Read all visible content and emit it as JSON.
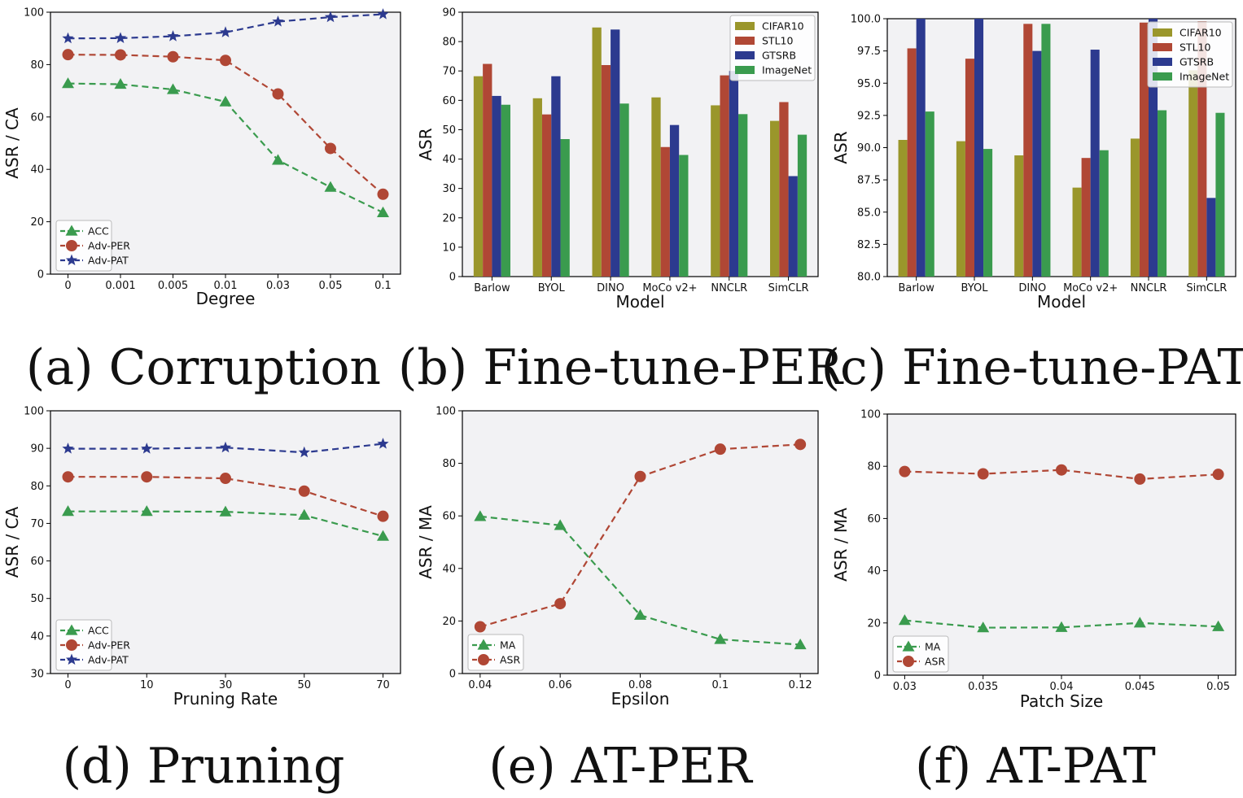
{
  "colors": {
    "green": "#3a9b4e",
    "red": "#b04735",
    "blue": "#2c3a8f",
    "olive": "#9a962b",
    "imagenet_green": "#3a9b4e"
  },
  "chart_data": [
    {
      "id": "a",
      "type": "line",
      "caption": "(a) Corruption",
      "xlabel": "Degree",
      "ylabel": "ASR / CA",
      "categories": [
        "0",
        "0.001",
        "0.005",
        "0.01",
        "0.03",
        "0.05",
        "0.1"
      ],
      "ylim": [
        0,
        100
      ],
      "yticks": [
        "0",
        "20",
        "40",
        "60",
        "80",
        "100"
      ],
      "legend_position": "lower-left",
      "series": [
        {
          "name": "ACC",
          "marker": "triangle",
          "color": "#3a9b4e",
          "values": [
            72.8,
            72.5,
            70.5,
            65.8,
            43.5,
            33.2,
            23.5
          ]
        },
        {
          "name": "Adv-PER",
          "marker": "circle",
          "color": "#b04735",
          "values": [
            83.8,
            83.7,
            83.0,
            81.6,
            68.8,
            48.0,
            30.5
          ]
        },
        {
          "name": "Adv-PAT",
          "marker": "star",
          "color": "#2c3a8f",
          "values": [
            90.0,
            90.1,
            90.8,
            92.3,
            96.4,
            98.1,
            99.2
          ]
        }
      ]
    },
    {
      "id": "b",
      "type": "bar",
      "caption": "(b) Fine-tune-PER",
      "xlabel": "Model",
      "ylabel": "ASR",
      "categories": [
        "Barlow",
        "BYOL",
        "DINO",
        "MoCo v2+",
        "NNCLR",
        "SimCLR"
      ],
      "ylim": [
        0,
        90
      ],
      "yticks": [
        "0",
        "10",
        "20",
        "30",
        "40",
        "50",
        "60",
        "70",
        "80",
        "90"
      ],
      "legend_position": "upper-right",
      "series": [
        {
          "name": "CIFAR10",
          "color": "#9a962b",
          "values": [
            68.2,
            60.7,
            84.8,
            61.0,
            58.3,
            53.0
          ]
        },
        {
          "name": "STL10",
          "color": "#b04735",
          "values": [
            72.4,
            55.2,
            72.0,
            44.1,
            68.5,
            59.4
          ]
        },
        {
          "name": "GTSRB",
          "color": "#2c3a8f",
          "values": [
            61.5,
            68.2,
            84.1,
            51.6,
            70.0,
            34.2
          ]
        },
        {
          "name": "ImageNet",
          "color": "#3a9b4e",
          "values": [
            58.5,
            46.8,
            58.9,
            41.4,
            55.3,
            48.3
          ]
        }
      ]
    },
    {
      "id": "c",
      "type": "bar",
      "caption": "(c) Fine-tune-PAT",
      "xlabel": "Model",
      "ylabel": "ASR",
      "categories": [
        "Barlow",
        "BYOL",
        "DINO",
        "MoCo v2+",
        "NNCLR",
        "SimCLR"
      ],
      "ylim": [
        80,
        100
      ],
      "yticks": [
        "80.0",
        "82.5",
        "85.0",
        "87.5",
        "90.0",
        "92.5",
        "95.0",
        "97.5",
        "100.0"
      ],
      "legend_position": "upper-right",
      "series": [
        {
          "name": "CIFAR10",
          "color": "#9a962b",
          "values": [
            90.6,
            90.5,
            89.4,
            86.9,
            90.7,
            96.0
          ]
        },
        {
          "name": "STL10",
          "color": "#b04735",
          "values": [
            97.7,
            96.9,
            99.6,
            89.2,
            99.7,
            99.8
          ]
        },
        {
          "name": "GTSRB",
          "color": "#2c3a8f",
          "values": [
            100.0,
            100.0,
            97.5,
            97.6,
            100.0,
            86.1
          ]
        },
        {
          "name": "ImageNet",
          "color": "#3a9b4e",
          "values": [
            92.8,
            89.9,
            99.6,
            89.8,
            92.9,
            92.7
          ]
        }
      ]
    },
    {
      "id": "d",
      "type": "line",
      "caption": "(d) Pruning",
      "xlabel": "Pruning Rate",
      "ylabel": "ASR / CA",
      "categories": [
        "0",
        "10",
        "30",
        "50",
        "70"
      ],
      "ylim": [
        30,
        100
      ],
      "yticks": [
        "30",
        "40",
        "50",
        "60",
        "70",
        "80",
        "90",
        "100"
      ],
      "legend_position": "lower-left",
      "series": [
        {
          "name": "ACC",
          "marker": "triangle",
          "color": "#3a9b4e",
          "values": [
            73.2,
            73.2,
            73.1,
            72.2,
            66.6
          ]
        },
        {
          "name": "Adv-PER",
          "marker": "circle",
          "color": "#b04735",
          "values": [
            82.4,
            82.4,
            82.0,
            78.6,
            71.9
          ]
        },
        {
          "name": "Adv-PAT",
          "marker": "star",
          "color": "#2c3a8f",
          "values": [
            89.9,
            89.9,
            90.2,
            88.9,
            91.2
          ]
        }
      ]
    },
    {
      "id": "e",
      "type": "line",
      "caption": "(e) AT-PER",
      "xlabel": "Epsilon",
      "ylabel": "ASR / MA",
      "categories": [
        "0.04",
        "0.06",
        "0.08",
        "0.1",
        "0.12"
      ],
      "ylim": [
        0,
        100
      ],
      "yticks": [
        "0",
        "20",
        "40",
        "60",
        "80",
        "100"
      ],
      "legend_position": "lower-left",
      "series": [
        {
          "name": "MA",
          "marker": "triangle",
          "color": "#3a9b4e",
          "values": [
            59.8,
            56.4,
            22.2,
            13.0,
            11.0
          ]
        },
        {
          "name": "ASR",
          "marker": "circle",
          "color": "#b04735",
          "values": [
            17.8,
            26.6,
            75.0,
            85.4,
            87.2
          ]
        }
      ]
    },
    {
      "id": "f",
      "type": "line",
      "caption": "(f) AT-PAT",
      "xlabel": "Patch Size",
      "ylabel": "ASR / MA",
      "categories": [
        "0.03",
        "0.035",
        "0.04",
        "0.045",
        "0.05"
      ],
      "ylim": [
        0,
        100
      ],
      "yticks": [
        "0",
        "20",
        "40",
        "60",
        "80",
        "100"
      ],
      "legend_position": "lower-left",
      "series": [
        {
          "name": "MA",
          "marker": "triangle",
          "color": "#3a9b4e",
          "values": [
            21.0,
            18.2,
            18.3,
            20.0,
            18.6
          ]
        },
        {
          "name": "ASR",
          "marker": "circle",
          "color": "#b04735",
          "values": [
            78.0,
            77.1,
            78.6,
            75.1,
            76.9
          ]
        }
      ]
    }
  ]
}
